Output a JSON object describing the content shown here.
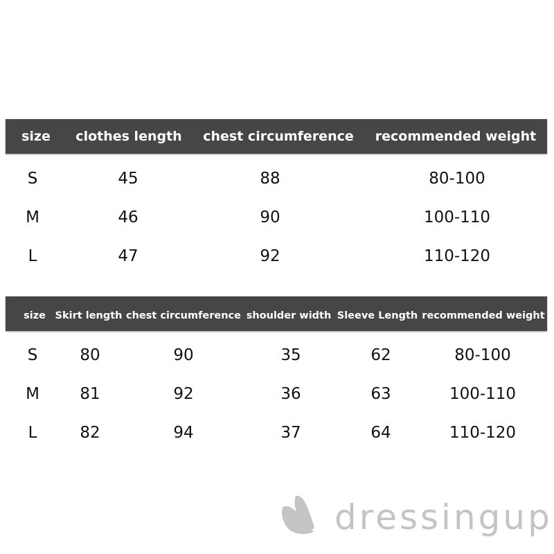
{
  "table1": {
    "headers": [
      "size",
      "clothes length",
      "chest circumference",
      "recommended weight"
    ],
    "rows": [
      [
        "S",
        "45",
        "88",
        "80-100"
      ],
      [
        "M",
        "46",
        "90",
        "100-110"
      ],
      [
        "L",
        "47",
        "92",
        "110-120"
      ]
    ]
  },
  "table2": {
    "headers": [
      "size",
      "Skirt length",
      "chest circumference",
      "shoulder width",
      "Sleeve Length",
      "recommended weight"
    ],
    "rows": [
      [
        "S",
        "80",
        "90",
        "35",
        "62",
        "80-100"
      ],
      [
        "M",
        "81",
        "92",
        "36",
        "63",
        "100-110"
      ],
      [
        "L",
        "82",
        "94",
        "37",
        "64",
        "110-120"
      ]
    ]
  },
  "logo": {
    "text": "dressingup",
    "color": "#c4c4c4"
  },
  "colors": {
    "header_bg": "#464646",
    "header_text": "#ffffff"
  }
}
